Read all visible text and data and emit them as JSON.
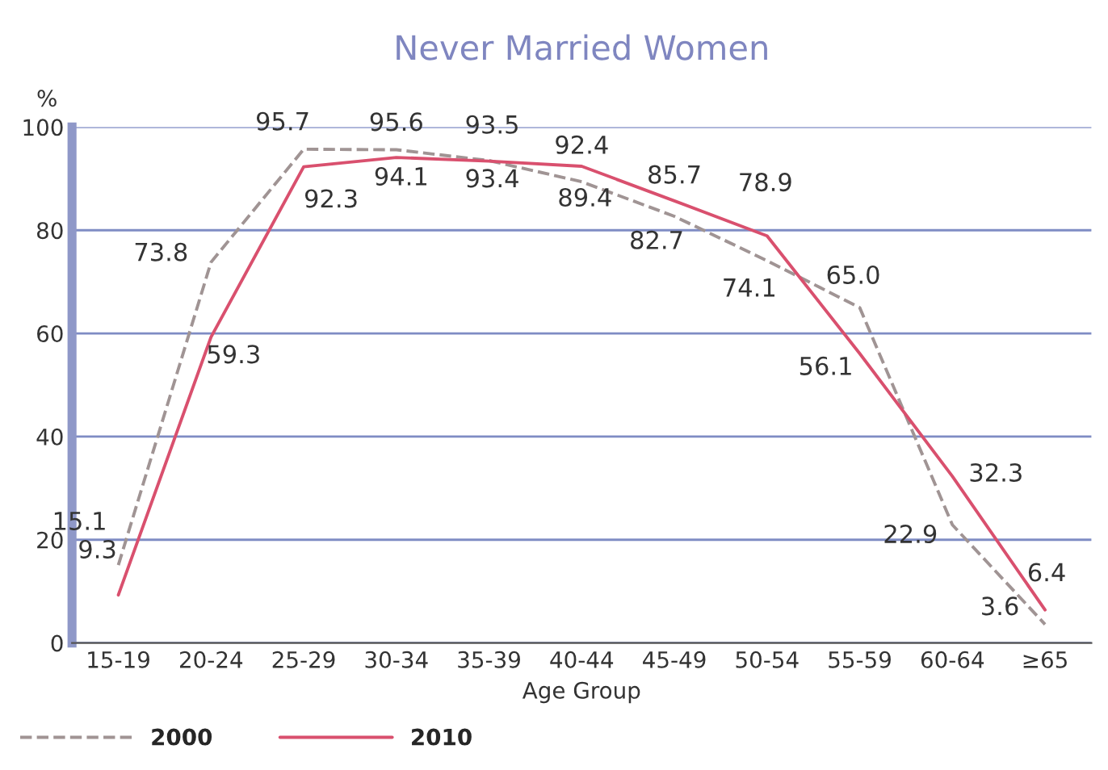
{
  "chart_data": {
    "type": "line",
    "title": "Never Married Women",
    "xlabel": "Age Group",
    "ylabel": "%",
    "categories": [
      "15-19",
      "20-24",
      "25-29",
      "30-34",
      "35-39",
      "40-44",
      "45-49",
      "50-54",
      "55-59",
      "60-64",
      "≥65"
    ],
    "series": [
      {
        "name": "2000",
        "color": "#a09494",
        "line_style": "dashed",
        "values": [
          15.1,
          73.8,
          95.7,
          95.6,
          93.5,
          89.4,
          82.7,
          74.1,
          65.0,
          22.9,
          3.6
        ],
        "value_labels": [
          "15.1",
          "73.8",
          "95.7",
          "95.6",
          "93.5",
          "89.4",
          "82.7",
          "74.1",
          "65.0",
          "22.9",
          "3.6"
        ]
      },
      {
        "name": "2010",
        "color": "#d9506e",
        "line_style": "solid",
        "values": [
          9.3,
          59.3,
          92.3,
          94.1,
          93.4,
          92.4,
          85.7,
          78.9,
          56.1,
          32.3,
          6.4
        ],
        "value_labels": [
          "9.3",
          "59.3",
          "92.3",
          "94.1",
          "93.4",
          "92.4",
          "85.7",
          "78.9",
          "56.1",
          "32.3",
          "6.4"
        ]
      }
    ],
    "ylim": [
      0,
      100
    ],
    "yticks": [
      0,
      20,
      40,
      60,
      80,
      100
    ],
    "grid": "y",
    "legend": "bottom left",
    "data_labels": true,
    "marker": "none"
  }
}
